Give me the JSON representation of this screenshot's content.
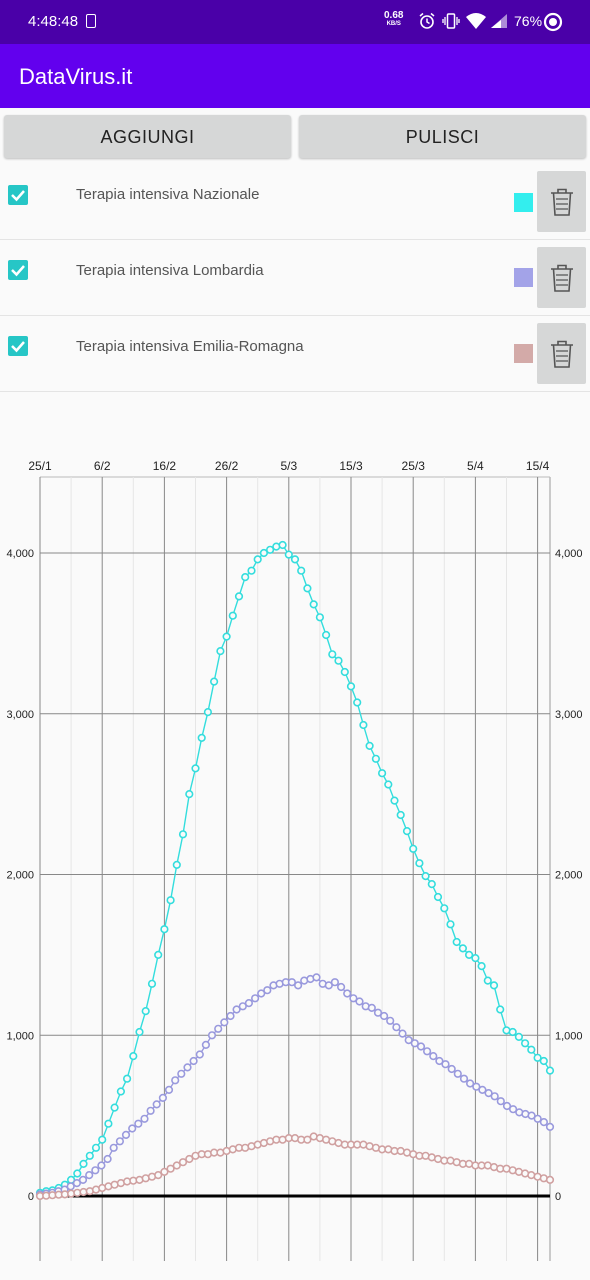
{
  "status_bar": {
    "time": "4:48:48",
    "net_speed_value": "0.68",
    "net_speed_unit": "KB/S",
    "battery": "76%"
  },
  "app_bar": {
    "title": "DataVirus.it"
  },
  "buttons": {
    "add": "AGGIUNGI",
    "clear": "PULISCI"
  },
  "series_list": [
    {
      "label": "Terapia intensiva Nazionale",
      "color": "#33eeee",
      "checked": true
    },
    {
      "label": "Terapia intensiva Lombardia",
      "color": "#a3a3e8",
      "checked": true
    },
    {
      "label": "Terapia intensiva Emilia-Romagna",
      "color": "#d3aaa8",
      "checked": true
    }
  ],
  "chart_data": {
    "type": "line",
    "x_ticks": [
      "25/1",
      "6/2",
      "16/2",
      "26/2",
      "5/3",
      "15/3",
      "25/3",
      "5/4",
      "15/4"
    ],
    "y_ticks": [
      "0",
      "1,000",
      "2,000",
      "3,000",
      "4,000"
    ],
    "ylim": [
      0,
      4500
    ],
    "series": [
      {
        "color": "#33dddd",
        "values": [
          20,
          30,
          35,
          50,
          70,
          100,
          140,
          200,
          250,
          300,
          350,
          450,
          550,
          650,
          730,
          870,
          1020,
          1150,
          1320,
          1500,
          1660,
          1840,
          2060,
          2250,
          2500,
          2660,
          2850,
          3010,
          3200,
          3390,
          3480,
          3610,
          3730,
          3850,
          3890,
          3960,
          4000,
          4020,
          4040,
          4050,
          3990,
          3960,
          3890,
          3780,
          3680,
          3600,
          3490,
          3370,
          3330,
          3260,
          3170,
          3070,
          2930,
          2800,
          2720,
          2630,
          2560,
          2460,
          2370,
          2270,
          2160,
          2070,
          1990,
          1940,
          1860,
          1790,
          1690,
          1580,
          1540,
          1500,
          1480,
          1430,
          1340,
          1310,
          1160,
          1030,
          1020,
          990,
          950,
          910,
          860,
          840,
          780
        ]
      },
      {
        "color": "#9999dd",
        "values": [
          10,
          15,
          20,
          30,
          40,
          60,
          80,
          100,
          130,
          160,
          190,
          230,
          300,
          340,
          380,
          420,
          450,
          480,
          530,
          570,
          610,
          660,
          720,
          760,
          800,
          840,
          880,
          940,
          1000,
          1040,
          1080,
          1120,
          1160,
          1180,
          1200,
          1230,
          1260,
          1280,
          1310,
          1320,
          1330,
          1330,
          1310,
          1340,
          1350,
          1360,
          1320,
          1310,
          1330,
          1300,
          1260,
          1230,
          1210,
          1180,
          1170,
          1140,
          1120,
          1090,
          1050,
          1010,
          970,
          950,
          930,
          900,
          870,
          840,
          820,
          790,
          760,
          730,
          700,
          680,
          660,
          640,
          620,
          590,
          560,
          540,
          520,
          510,
          500,
          480,
          460,
          430
        ]
      },
      {
        "color": "#d0a0a0",
        "values": [
          0,
          2,
          5,
          8,
          10,
          15,
          20,
          25,
          30,
          40,
          50,
          60,
          70,
          80,
          90,
          95,
          100,
          110,
          120,
          130,
          150,
          170,
          190,
          210,
          230,
          250,
          260,
          260,
          270,
          270,
          280,
          290,
          300,
          300,
          310,
          320,
          330,
          340,
          350,
          350,
          360,
          360,
          350,
          350,
          370,
          360,
          350,
          340,
          330,
          320,
          320,
          320,
          320,
          310,
          300,
          290,
          290,
          280,
          280,
          270,
          260,
          250,
          250,
          240,
          230,
          220,
          220,
          210,
          200,
          200,
          190,
          190,
          190,
          180,
          170,
          170,
          160,
          150,
          140,
          130,
          120,
          110,
          100
        ]
      }
    ]
  }
}
